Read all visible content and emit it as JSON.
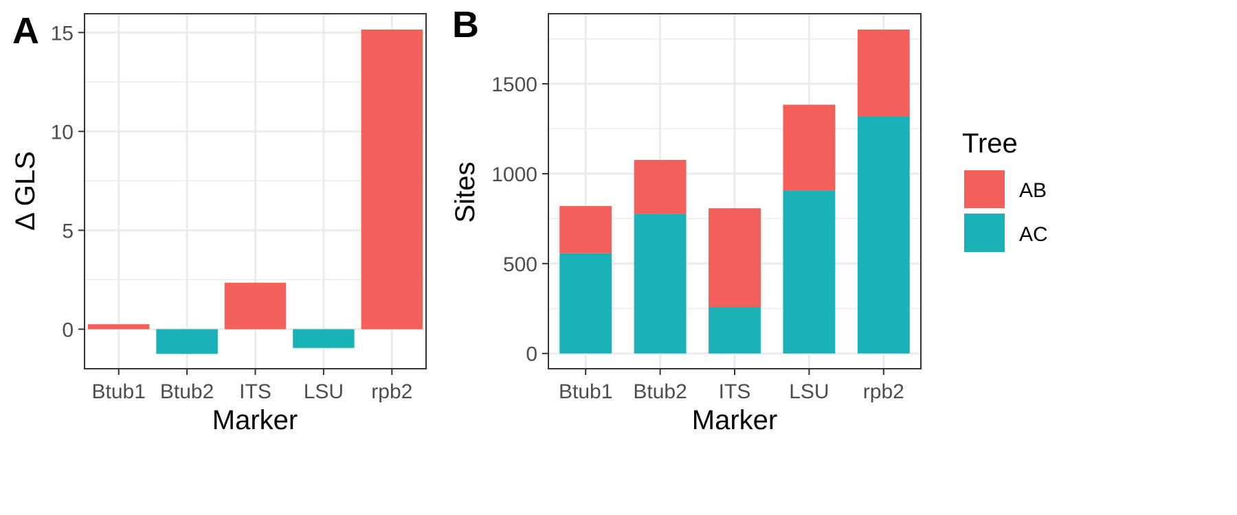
{
  "colors": {
    "AB": "#F35F5B",
    "AC": "#1AB2B7"
  },
  "chart_data": [
    {
      "panel": "A",
      "type": "bar",
      "categories": [
        "Btub1",
        "Btub2",
        "ITS",
        "LSU",
        "rpb2"
      ],
      "values": [
        0.25,
        -1.25,
        2.35,
        -0.95,
        15.15
      ],
      "value_series": [
        "AB",
        "AC",
        "AB",
        "AC",
        "AB"
      ],
      "xlabel": "Marker",
      "ylabel": "Δ GLS",
      "ylim": [
        -2.0,
        15.95
      ],
      "yticks": [
        0,
        5,
        10,
        15
      ],
      "grid": true
    },
    {
      "panel": "B",
      "type": "bar",
      "stacked": true,
      "categories": [
        "Btub1",
        "Btub2",
        "ITS",
        "LSU",
        "rpb2"
      ],
      "series": [
        {
          "name": "AC",
          "values": [
            558,
            777,
            259,
            906,
            1317
          ]
        },
        {
          "name": "AB",
          "values": [
            262,
            300,
            549,
            478,
            485
          ]
        }
      ],
      "xlabel": "Marker",
      "ylabel": "Sites",
      "ylim": [
        -85,
        1890
      ],
      "yticks": [
        0,
        500,
        1000,
        1500
      ],
      "grid": true,
      "legend": {
        "title": "Tree",
        "position": "right",
        "entries": [
          "AB",
          "AC"
        ]
      }
    }
  ]
}
